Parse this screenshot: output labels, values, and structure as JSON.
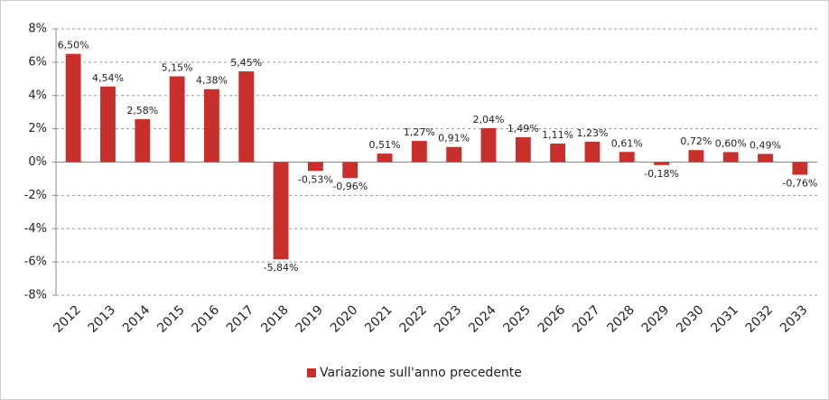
{
  "chart_data": {
    "type": "bar",
    "categories": [
      "2012",
      "2013",
      "2014",
      "2015",
      "2016",
      "2017",
      "2018",
      "2019",
      "2020",
      "2021",
      "2022",
      "2023",
      "2024",
      "2025",
      "2026",
      "2027",
      "2028",
      "2029",
      "2030",
      "2031",
      "2032",
      "2033"
    ],
    "series": [
      {
        "name": "Variazione sull'anno precedente",
        "color": "#c9302c",
        "values": [
          6.5,
          4.54,
          2.58,
          5.15,
          4.38,
          5.45,
          -5.84,
          -0.53,
          -0.96,
          0.51,
          1.27,
          0.91,
          2.04,
          1.49,
          1.11,
          1.23,
          0.61,
          -0.18,
          0.72,
          0.6,
          0.49,
          -0.76
        ],
        "value_labels": [
          "6,50%",
          "4,54%",
          "2,58%",
          "5,15%",
          "4,38%",
          "5,45%",
          "-5,84%",
          "-0,53%",
          "-0,96%",
          "0,51%",
          "1,27%",
          "0,91%",
          "2,04%",
          "1,49%",
          "1,11%",
          "1,23%",
          "0,61%",
          "-0,18%",
          "0,72%",
          "0,60%",
          "0,49%",
          "-0,76%"
        ]
      }
    ],
    "ylim": [
      -8,
      8
    ],
    "yticks": [
      {
        "value": -8,
        "label": "-8%"
      },
      {
        "value": -6,
        "label": "-6%"
      },
      {
        "value": -4,
        "label": "-4%"
      },
      {
        "value": -2,
        "label": "-2%"
      },
      {
        "value": 0,
        "label": "0%"
      },
      {
        "value": 2,
        "label": "2%"
      },
      {
        "value": 4,
        "label": "4%"
      },
      {
        "value": 6,
        "label": "6%"
      },
      {
        "value": 8,
        "label": "8%"
      }
    ],
    "grid": true,
    "legend": "bottom"
  }
}
